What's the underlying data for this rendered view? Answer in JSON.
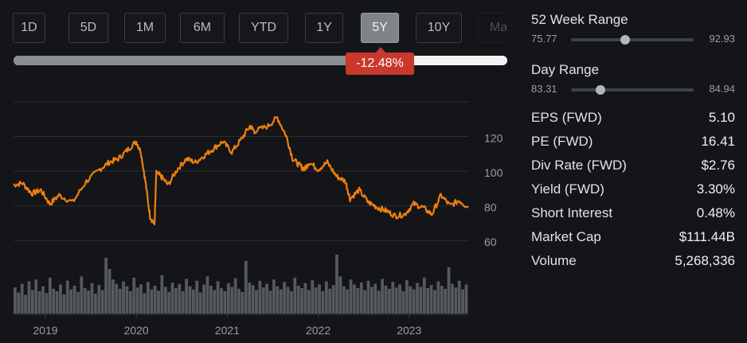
{
  "range_tabs": [
    {
      "label": "1D",
      "active": false
    },
    {
      "label": "5D",
      "active": false
    },
    {
      "label": "1M",
      "active": false
    },
    {
      "label": "6M",
      "active": false
    },
    {
      "label": "YTD",
      "active": false
    },
    {
      "label": "1Y",
      "active": false
    },
    {
      "label": "5Y",
      "active": true
    },
    {
      "label": "10Y",
      "active": false
    },
    {
      "label": "Max",
      "active": false
    }
  ],
  "change_badge": {
    "label": "-12.48%",
    "color": "#c8382c"
  },
  "stats": {
    "week52_range": {
      "title": "52 Week Range",
      "low": "75.77",
      "high": "92.93",
      "position": 0.44
    },
    "day_range": {
      "title": "Day Range",
      "low": "83.31",
      "high": "84.94",
      "position": 0.24
    },
    "rows": [
      {
        "label": "EPS (FWD)",
        "value": "5.10"
      },
      {
        "label": "PE (FWD)",
        "value": "16.41"
      },
      {
        "label": "Div Rate (FWD)",
        "value": "$2.76"
      },
      {
        "label": "Yield (FWD)",
        "value": "3.30%"
      },
      {
        "label": "Short Interest",
        "value": "0.48%"
      },
      {
        "label": "Market Cap",
        "value": "$111.44B"
      },
      {
        "label": "Volume",
        "value": "5,268,336"
      }
    ]
  },
  "chart_data": {
    "type": "line",
    "title": "",
    "xlabel": "",
    "ylabel": "",
    "x_tick_labels": [
      "2019",
      "2020",
      "2021",
      "2022",
      "2023"
    ],
    "y_tick_labels": [
      "60",
      "80",
      "100",
      "120"
    ],
    "ylim": [
      55,
      140
    ],
    "xlim": [
      2018.65,
      2023.65
    ],
    "line_color": "#f07f0f",
    "grid": true,
    "series": [
      {
        "x": [
          2018.65,
          2018.75,
          2018.85,
          2018.95,
          2019.05,
          2019.15,
          2019.3,
          2019.45,
          2019.6,
          2019.7,
          2019.8,
          2019.9,
          2020.0,
          2020.05,
          2020.1,
          2020.15,
          2020.2,
          2020.22,
          2020.27,
          2020.35,
          2020.45,
          2020.55,
          2020.65,
          2020.75,
          2020.85,
          2020.95,
          2021.05,
          2021.15,
          2021.25,
          2021.3,
          2021.45,
          2021.55,
          2021.65,
          2021.72,
          2021.8,
          2021.85,
          2021.9,
          2022.0,
          2022.1,
          2022.2,
          2022.3,
          2022.35,
          2022.45,
          2022.55,
          2022.65,
          2022.75,
          2022.85,
          2022.95,
          2023.05,
          2023.15,
          2023.25,
          2023.35,
          2023.45,
          2023.55,
          2023.65
        ],
        "y": [
          93,
          94,
          88,
          90,
          82,
          87,
          83,
          95,
          102,
          106,
          108,
          113,
          118,
          112,
          95,
          75,
          70,
          100,
          98,
          93,
          102,
          108,
          106,
          110,
          114,
          118,
          112,
          119,
          127,
          124,
          127,
          132,
          121,
          108,
          104,
          102,
          106,
          102,
          106,
          98,
          95,
          85,
          90,
          83,
          80,
          78,
          75,
          76,
          82,
          80,
          76,
          87,
          81,
          84,
          80
        ]
      }
    ],
    "volume": [
      42,
      34,
      48,
      30,
      52,
      38,
      55,
      36,
      44,
      33,
      58,
      40,
      36,
      47,
      31,
      53,
      39,
      45,
      35,
      60,
      41,
      37,
      49,
      32,
      46,
      38,
      90,
      72,
      55,
      48,
      40,
      52,
      44,
      36,
      58,
      42,
      47,
      33,
      51,
      39,
      45,
      37,
      62,
      43,
      35,
      50,
      41,
      48,
      36,
      56,
      44,
      39,
      53,
      34,
      47,
      60,
      45,
      38,
      52,
      41,
      36,
      49,
      43,
      57,
      40,
      35,
      85,
      50,
      46,
      38,
      53,
      42,
      48,
      37,
      55,
      44,
      39,
      51,
      43,
      36,
      58,
      45,
      41,
      49,
      38,
      54,
      42,
      47,
      36,
      52,
      40,
      46,
      95,
      60,
      44,
      39,
      55,
      47,
      41,
      50,
      38,
      53,
      43,
      48,
      37,
      56,
      45,
      40,
      51,
      42,
      47,
      36,
      54,
      44,
      39,
      49,
      43,
      58,
      41,
      46,
      38,
      52,
      45,
      40,
      75,
      48,
      42,
      53,
      39,
      47
    ]
  }
}
